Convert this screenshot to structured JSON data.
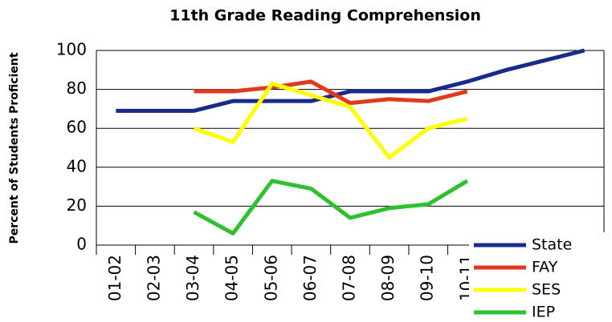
{
  "chart_data": {
    "type": "line",
    "title": "11th Grade Reading Comprehension",
    "y_label": "Percent of Students Proficient",
    "categories": [
      "01-02",
      "02-03",
      "03-04",
      "04-05",
      "05-06",
      "06-07",
      "07-08",
      "08-09",
      "09-10",
      "10-11",
      null,
      null,
      null
    ],
    "series": [
      {
        "name": "State",
        "color": "#1a2a8c",
        "values": [
          69,
          69,
          69,
          74,
          74,
          74,
          79,
          79,
          79,
          84,
          90,
          95,
          100
        ]
      },
      {
        "name": "FAY",
        "color": "#e03a1e",
        "values": [
          null,
          null,
          79,
          79,
          81,
          84,
          73,
          75,
          74,
          79,
          null,
          null,
          null
        ]
      },
      {
        "name": "SES",
        "color": "#ffff00",
        "values": [
          null,
          null,
          60,
          53,
          83,
          77,
          71,
          45,
          60,
          65,
          null,
          null,
          null
        ]
      },
      {
        "name": "IEP",
        "color": "#2ec02e",
        "values": [
          null,
          null,
          17,
          6,
          33,
          29,
          14,
          19,
          21,
          33,
          null,
          null,
          null
        ]
      }
    ],
    "ylim": [
      0,
      100
    ],
    "yticks": [
      0,
      20,
      40,
      60,
      80,
      100
    ],
    "grid": true,
    "legend": "lower right"
  }
}
